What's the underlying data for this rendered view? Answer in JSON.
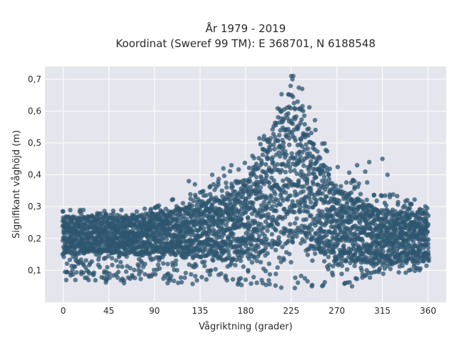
{
  "chart_data": {
    "type": "scatter",
    "title_line1": "År 1979 - 2019",
    "title_line2": "Koordinat (Sweref 99 TM): E 368701, N 6188548",
    "xlabel": "Vågriktning (grader)",
    "ylabel": "Signifikant våghöjd (m)",
    "xlim": [
      -18,
      378
    ],
    "ylim": [
      0.0,
      0.74
    ],
    "xticks": [
      0,
      45,
      90,
      135,
      180,
      225,
      270,
      315,
      360
    ],
    "xtick_labels": [
      "0",
      "45",
      "90",
      "135",
      "180",
      "225",
      "270",
      "315",
      "360"
    ],
    "yticks": [
      0.1,
      0.2,
      0.3,
      0.4,
      0.5,
      0.6,
      0.7
    ],
    "ytick_labels": [
      "0,1",
      "0,2",
      "0,3",
      "0,4",
      "0,5",
      "0,6",
      "0,7"
    ],
    "grid": true,
    "background_color": "#e5e5ee",
    "marker_color": "#2e566f",
    "envelope": {
      "x": [
        0,
        45,
        90,
        135,
        165,
        180,
        195,
        210,
        220,
        225,
        235,
        250,
        270,
        315,
        360
      ],
      "ymin": [
        0.08,
        0.06,
        0.07,
        0.05,
        0.05,
        0.05,
        0.05,
        0.05,
        0.04,
        0.04,
        0.04,
        0.05,
        0.05,
        0.08,
        0.1
      ],
      "ymax": [
        0.29,
        0.29,
        0.3,
        0.36,
        0.42,
        0.44,
        0.53,
        0.63,
        0.69,
        0.71,
        0.68,
        0.56,
        0.43,
        0.35,
        0.31
      ],
      "core_low": [
        0.15,
        0.15,
        0.15,
        0.14,
        0.13,
        0.13,
        0.14,
        0.16,
        0.18,
        0.18,
        0.17,
        0.15,
        0.13,
        0.12,
        0.13
      ],
      "core_high": [
        0.27,
        0.27,
        0.28,
        0.31,
        0.35,
        0.38,
        0.46,
        0.57,
        0.64,
        0.66,
        0.62,
        0.48,
        0.36,
        0.29,
        0.28
      ]
    },
    "outliers": [
      {
        "x": 3,
        "y": 0.07
      },
      {
        "x": 12,
        "y": 0.07
      },
      {
        "x": 60,
        "y": 0.06
      },
      {
        "x": 103,
        "y": 0.06
      },
      {
        "x": 124,
        "y": 0.38
      },
      {
        "x": 130,
        "y": 0.37
      },
      {
        "x": 158,
        "y": 0.42
      },
      {
        "x": 166,
        "y": 0.43
      },
      {
        "x": 147,
        "y": 0.4
      },
      {
        "x": 290,
        "y": 0.43
      },
      {
        "x": 298,
        "y": 0.41
      },
      {
        "x": 302,
        "y": 0.44
      },
      {
        "x": 315,
        "y": 0.45
      },
      {
        "x": 320,
        "y": 0.4
      },
      {
        "x": 278,
        "y": 0.06
      },
      {
        "x": 285,
        "y": 0.05
      },
      {
        "x": 225,
        "y": 0.71
      },
      {
        "x": 227,
        "y": 0.71
      }
    ]
  }
}
